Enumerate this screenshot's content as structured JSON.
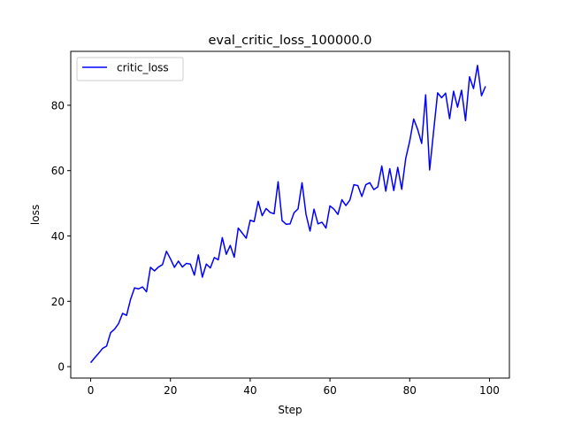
{
  "chart_data": {
    "type": "line",
    "title": "eval_critic_loss_100000.0",
    "xlabel": "Step",
    "ylabel": "loss",
    "xlim": [
      -5,
      105
    ],
    "ylim": [
      -3.5,
      96.5
    ],
    "xticks": [
      0,
      20,
      40,
      60,
      80,
      100
    ],
    "yticks": [
      0,
      20,
      40,
      60,
      80
    ],
    "grid": false,
    "legend_position": "top-left",
    "series": [
      {
        "name": "critic_loss",
        "color": "#0000ff",
        "x": [
          0,
          1,
          2,
          3,
          4,
          5,
          6,
          7,
          8,
          9,
          10,
          11,
          12,
          13,
          14,
          15,
          16,
          17,
          18,
          19,
          20,
          21,
          22,
          23,
          24,
          25,
          26,
          27,
          28,
          29,
          30,
          31,
          32,
          33,
          34,
          35,
          36,
          37,
          38,
          39,
          40,
          41,
          42,
          43,
          44,
          45,
          46,
          47,
          48,
          49,
          50,
          51,
          52,
          53,
          54,
          55,
          56,
          57,
          58,
          59,
          60,
          61,
          62,
          63,
          64,
          65,
          66,
          67,
          68,
          69,
          70,
          71,
          72,
          73,
          74,
          75,
          76,
          77,
          78,
          79,
          80,
          81,
          82,
          83,
          84,
          85,
          86,
          87,
          88,
          89,
          90,
          91,
          92,
          93,
          94,
          95,
          96,
          97,
          98,
          99
        ],
        "values": [
          1.2,
          2.7,
          4.1,
          5.6,
          6.3,
          10.4,
          11.5,
          13.2,
          16.3,
          15.7,
          20.6,
          24.1,
          23.8,
          24.4,
          22.9,
          30.4,
          29.3,
          30.5,
          31.2,
          35.3,
          33.0,
          30.4,
          32.3,
          30.5,
          31.6,
          31.4,
          28.0,
          34.2,
          27.4,
          31.4,
          30.2,
          33.4,
          32.7,
          39.5,
          34.4,
          37.1,
          33.5,
          42.4,
          40.9,
          39.3,
          44.8,
          44.4,
          50.6,
          46.2,
          48.4,
          47.2,
          46.8,
          56.6,
          44.7,
          43.6,
          43.7,
          47.1,
          48.3,
          56.3,
          46.6,
          41.5,
          48.2,
          43.7,
          44.2,
          42.4,
          49.2,
          48.2,
          46.6,
          51.1,
          49.3,
          51.0,
          55.7,
          55.4,
          52.1,
          55.7,
          56.3,
          54.2,
          55.0,
          61.4,
          53.7,
          60.6,
          53.9,
          61.0,
          54.3,
          63.7,
          69.0,
          75.8,
          72.6,
          68.3,
          83.2,
          60.2,
          72.1,
          83.8,
          82.3,
          83.7,
          75.9,
          84.3,
          79.4,
          84.6,
          75.3,
          88.7,
          85.1,
          92.2,
          82.9,
          85.8
        ]
      }
    ]
  }
}
